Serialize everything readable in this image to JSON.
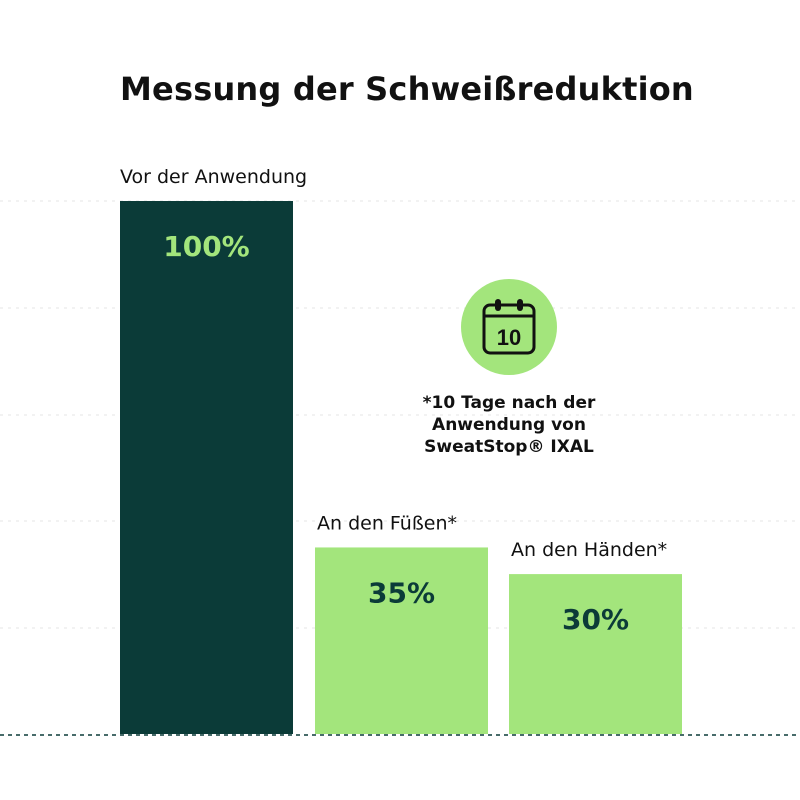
{
  "title": "Messung der Schweißreduktion",
  "colors": {
    "dark_bar": "#0b3b38",
    "light_bar": "#a3e57c",
    "dark_value_text": "#a3e57c",
    "light_value_text": "#0b3b38",
    "grid": "#e6e6e6",
    "baseline": "#0b3b38"
  },
  "note": {
    "icon": "calendar-icon",
    "icon_number": "10",
    "text": "*10 Tage nach der Anwendung von SweatStop® IXAL"
  },
  "chart_data": {
    "type": "bar",
    "title": "Messung der Schweißreduktion",
    "categories": [
      "Vor der Anwendung",
      "An den Füßen*",
      "An den Händen*"
    ],
    "values": [
      100,
      35,
      30
    ],
    "value_labels": [
      "100%",
      "35%",
      "30%"
    ],
    "ylim": [
      0,
      100
    ],
    "grid": true,
    "legend": "none"
  }
}
